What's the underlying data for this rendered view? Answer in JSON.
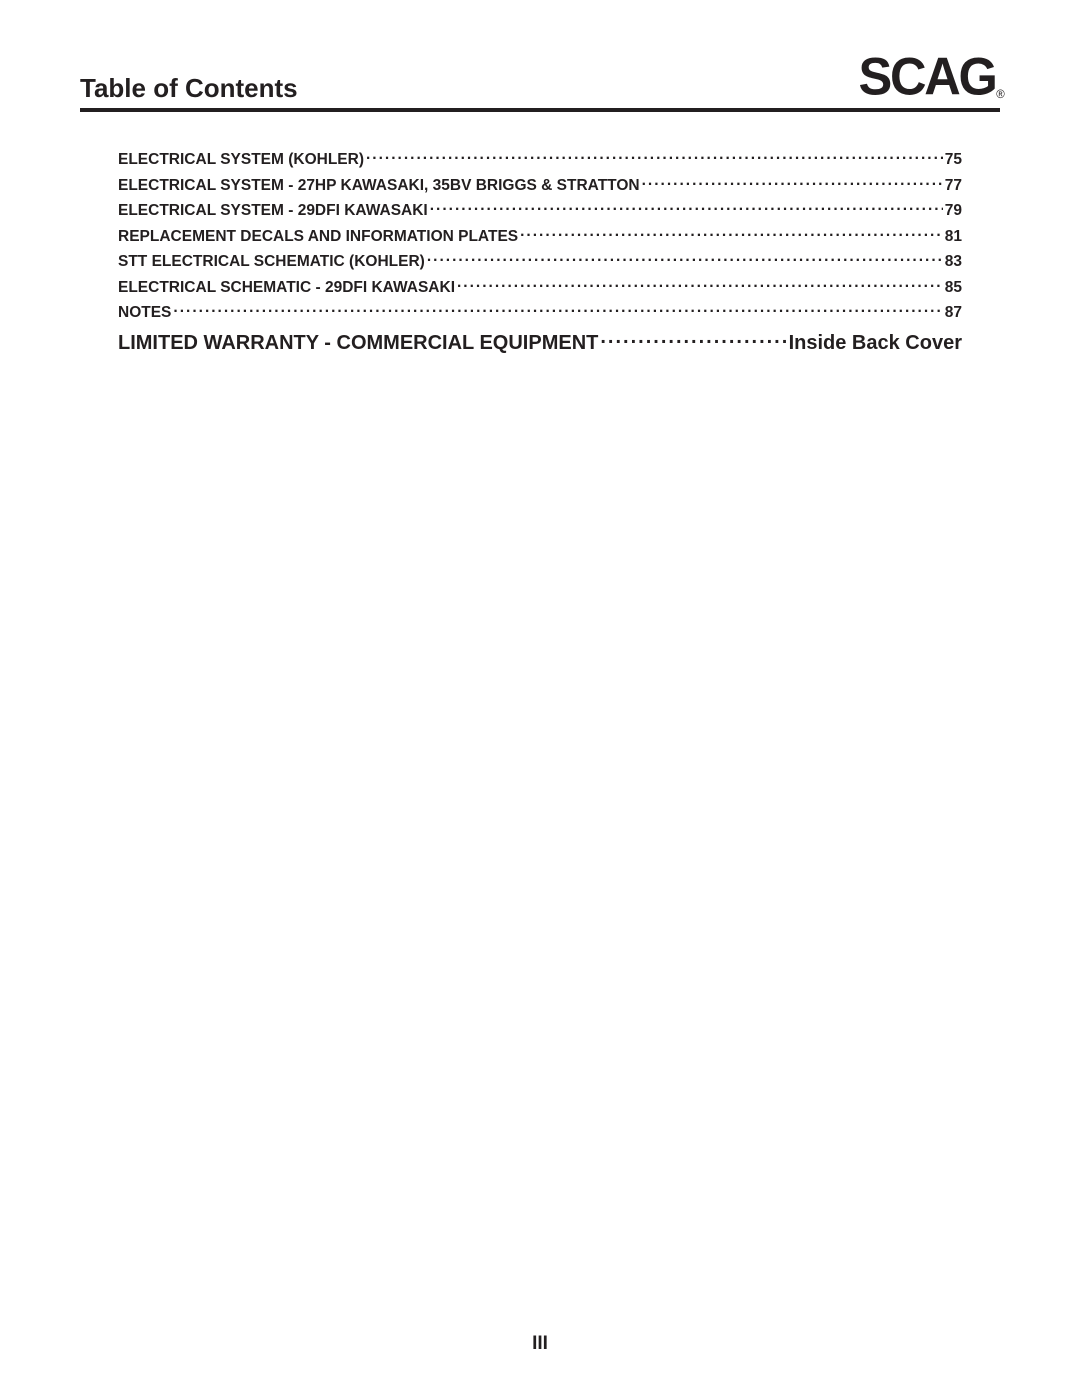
{
  "header": {
    "title": "Table of Contents",
    "logo_text": "SCAG"
  },
  "toc": {
    "entries": [
      {
        "title": "ELECTRICAL SYSTEM (KOHLER)",
        "page": "75",
        "size": "small"
      },
      {
        "title": "ELECTRICAL SYSTEM - 27HP KAWASAKI, 35BV BRIGGS & STRATTON",
        "page": "77",
        "size": "small"
      },
      {
        "title": "ELECTRICAL SYSTEM - 29DFI KAWASAKI",
        "page": "79",
        "size": "small"
      },
      {
        "title": "REPLACEMENT DECALS AND INFORMATION PLATES",
        "page": "81",
        "size": "small"
      },
      {
        "title": "STT ELECTRICAL SCHEMATIC (KOHLER)",
        "page": "83",
        "size": "small"
      },
      {
        "title": "ELECTRICAL SCHEMATIC - 29DFI KAWASAKI",
        "page": "85",
        "size": "small"
      },
      {
        "title": "NOTES",
        "page": "87",
        "size": "small"
      },
      {
        "title": "LIMITED WARRANTY - COMMERCIAL EQUIPMENT",
        "page": "Inside Back Cover",
        "size": "large"
      }
    ]
  },
  "footer": {
    "page_number": "III"
  },
  "colors": {
    "text": "#231f20",
    "background": "#ffffff",
    "rule": "#231f20"
  },
  "typography": {
    "body_font": "Arial, Helvetica, sans-serif",
    "title_fontsize_pt": 20,
    "entry_small_fontsize_pt": 12,
    "entry_large_fontsize_pt": 15,
    "logo_fontsize_pt": 33,
    "logo_weight": 900
  }
}
